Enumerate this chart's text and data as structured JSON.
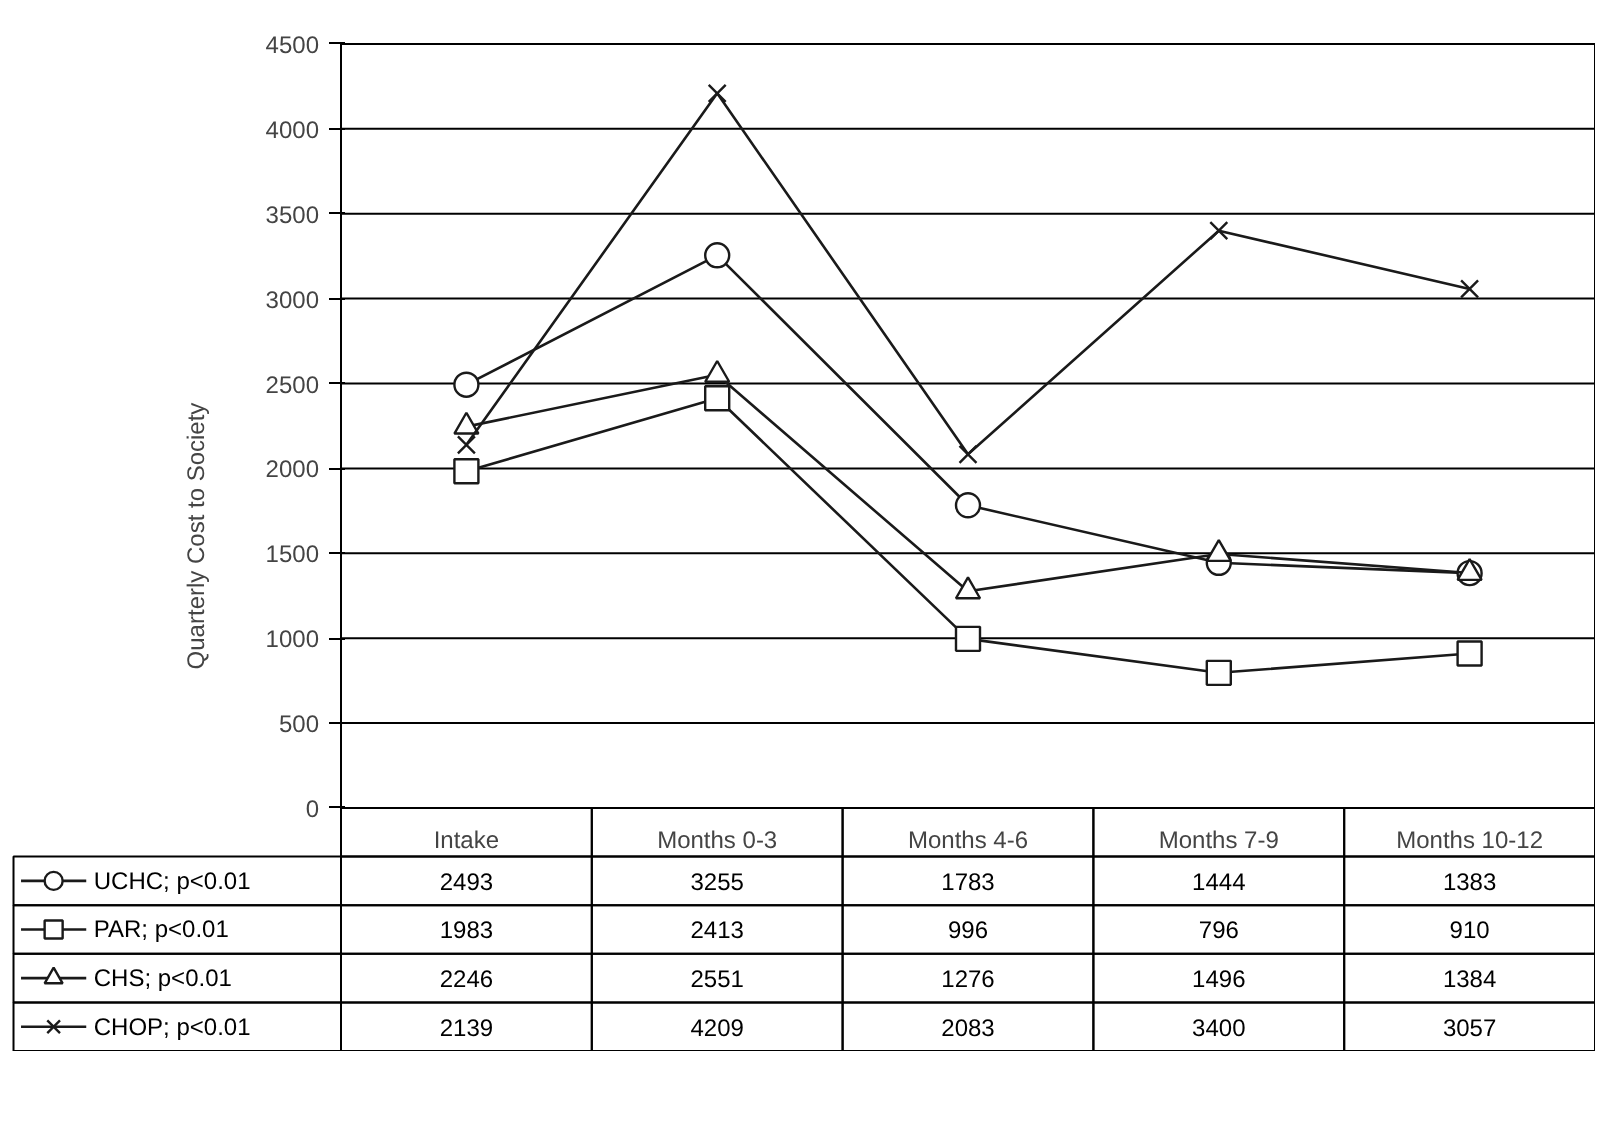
{
  "chart_data": {
    "type": "line",
    "ylabel": "Quarterly Cost to Society",
    "categories": [
      "Intake",
      "Months 0-3",
      "Months 4-6",
      "Months 7-9",
      "Months 10-12"
    ],
    "series": [
      {
        "name": "UCHC; p<0.01",
        "color": "#1a1a1a",
        "marker": "circle",
        "values": [
          2493,
          3255,
          1783,
          1444,
          1383
        ]
      },
      {
        "name": "PAR; p<0.01",
        "color": "#1a1a1a",
        "marker": "square",
        "values": [
          1983,
          2413,
          996,
          796,
          910
        ]
      },
      {
        "name": "CHS; p<0.01",
        "color": "#1a1a1a",
        "marker": "triangle",
        "values": [
          2246,
          2551,
          1276,
          1496,
          1384
        ]
      },
      {
        "name": "CHOP; p<0.01",
        "color": "#1a1a1a",
        "marker": "cross",
        "values": [
          2139,
          4209,
          2083,
          3400,
          3057
        ]
      }
    ],
    "ylim": [
      0,
      4500
    ],
    "yticks": [
      0,
      500,
      1000,
      1500,
      2000,
      2500,
      3000,
      3500,
      4000,
      4500
    ],
    "grid": "y",
    "data_labels": true,
    "legend": "bottom",
    "line_style": "solid"
  }
}
